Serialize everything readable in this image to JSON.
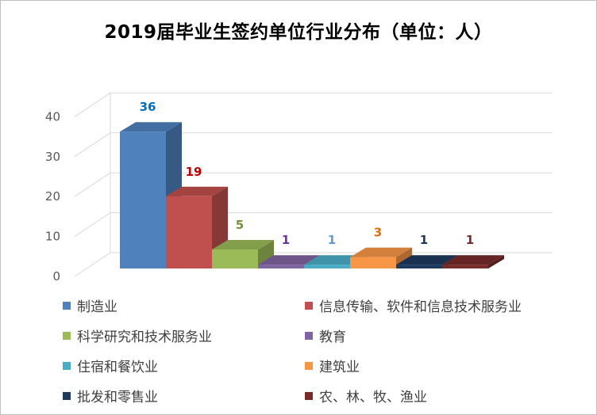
{
  "chart_data": {
    "type": "bar",
    "style": "3d-column",
    "title": "2019届毕业生签约单位行业分布（单位：人）",
    "xlabel": "",
    "ylabel": "",
    "ylim": [
      0,
      40
    ],
    "yticks": [
      0,
      10,
      20,
      30,
      40
    ],
    "grid": true,
    "legend_position": "bottom",
    "categories": [
      "制造业",
      "信息传输、软件和信息技术服务业",
      "科学研究和技术服务业",
      "教育",
      "住宿和餐饮业",
      "建筑业",
      "批发和零售业",
      "农、林、牧、渔业"
    ],
    "values": [
      36,
      19,
      5,
      1,
      1,
      3,
      1,
      1
    ],
    "colors": [
      "#4f81bd",
      "#c0504d",
      "#9bbb59",
      "#8064a2",
      "#4bacc6",
      "#f79646",
      "#1f3a5f",
      "#772c2a"
    ],
    "label_colors": [
      "#0070c0",
      "#c00000",
      "#76923c",
      "#7030a0",
      "#5b9bd5",
      "#e36c09",
      "#1f3864",
      "#772c2a"
    ]
  }
}
